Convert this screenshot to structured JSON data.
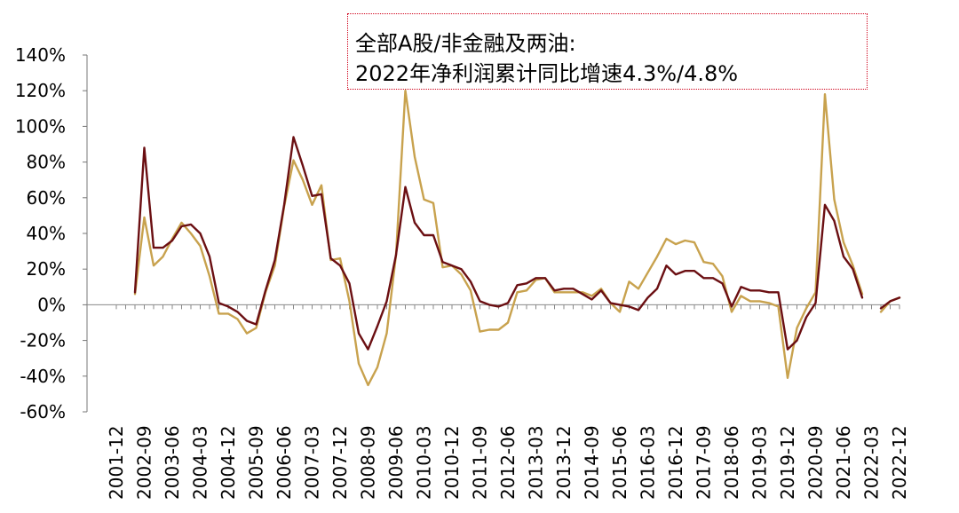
{
  "chart_data": {
    "type": "line",
    "annotation": [
      "全部A股/非金融及两油:",
      "2022年净利润累计同比增速4.3%/4.8%"
    ],
    "y_ticks": [
      -60,
      -40,
      -20,
      0,
      20,
      40,
      60,
      80,
      100,
      120,
      140
    ],
    "y_tick_labels": [
      "-60%",
      "-40%",
      "-20%",
      "0%",
      "20%",
      "40%",
      "60%",
      "80%",
      "100%",
      "120%",
      "140%"
    ],
    "ylim": [
      -60,
      140
    ],
    "x_tick_labels": [
      "2001-12",
      "2002-09",
      "2003-06",
      "2004-03",
      "2004-12",
      "2005-09",
      "2006-06",
      "2007-03",
      "2007-12",
      "2008-09",
      "2009-06",
      "2010-03",
      "2010-12",
      "2011-09",
      "2012-06",
      "2013-03",
      "2013-12",
      "2014-09",
      "2015-06",
      "2016-03",
      "2016-12",
      "2017-09",
      "2018-06",
      "2019-03",
      "2019-12",
      "2020-09",
      "2021-06",
      "2022-03",
      "2022-12"
    ],
    "x_range": [
      "2001-12",
      "2022-12"
    ],
    "grid": false,
    "legend": "none",
    "series": [
      {
        "color": "#6b0f12",
        "points": [
          [
            "2002-06",
            7
          ],
          [
            "2002-09",
            88
          ],
          [
            "2002-12",
            32
          ],
          [
            "2003-03",
            32
          ],
          [
            "2003-06",
            36
          ],
          [
            "2003-09",
            44
          ],
          [
            "2003-12",
            45
          ],
          [
            "2004-03",
            40
          ],
          [
            "2004-06",
            27
          ],
          [
            "2004-09",
            1
          ],
          [
            "2004-12",
            -1
          ],
          [
            "2005-03",
            -4
          ],
          [
            "2005-06",
            -9
          ],
          [
            "2005-09",
            -11
          ],
          [
            "2005-12",
            8
          ],
          [
            "2006-03",
            25
          ],
          [
            "2006-06",
            56
          ],
          [
            "2006-09",
            94
          ],
          [
            "2006-12",
            78
          ],
          [
            "2007-03",
            61
          ],
          [
            "2007-06",
            62
          ],
          [
            "2007-09",
            26
          ],
          [
            "2007-12",
            22
          ],
          [
            "2008-03",
            12
          ],
          [
            "2008-06",
            -16
          ],
          [
            "2008-09",
            -25
          ],
          [
            "2008-12",
            -12
          ],
          [
            "2009-03",
            2
          ],
          [
            "2009-06",
            28
          ],
          [
            "2009-09",
            66
          ],
          [
            "2009-12",
            46
          ],
          [
            "2010-03",
            39
          ],
          [
            "2010-06",
            39
          ],
          [
            "2010-09",
            24
          ],
          [
            "2010-12",
            22
          ],
          [
            "2011-03",
            20
          ],
          [
            "2011-06",
            13
          ],
          [
            "2011-09",
            2
          ],
          [
            "2011-12",
            0
          ],
          [
            "2012-03",
            -1
          ],
          [
            "2012-06",
            1
          ],
          [
            "2012-09",
            11
          ],
          [
            "2012-12",
            12
          ],
          [
            "2013-03",
            15
          ],
          [
            "2013-06",
            15
          ],
          [
            "2013-09",
            8
          ],
          [
            "2013-12",
            9
          ],
          [
            "2014-03",
            9
          ],
          [
            "2014-06",
            6
          ],
          [
            "2014-09",
            3
          ],
          [
            "2014-12",
            8
          ],
          [
            "2015-03",
            1
          ],
          [
            "2015-06",
            0
          ],
          [
            "2015-09",
            -1
          ],
          [
            "2015-12",
            -3
          ],
          [
            "2016-03",
            4
          ],
          [
            "2016-06",
            9
          ],
          [
            "2016-09",
            22
          ],
          [
            "2016-12",
            17
          ],
          [
            "2017-03",
            19
          ],
          [
            "2017-06",
            19
          ],
          [
            "2017-09",
            15
          ],
          [
            "2017-12",
            15
          ],
          [
            "2018-03",
            12
          ],
          [
            "2018-06",
            -1
          ],
          [
            "2018-09",
            10
          ],
          [
            "2018-12",
            8
          ],
          [
            "2019-03",
            8
          ],
          [
            "2019-06",
            7
          ],
          [
            "2019-09",
            7
          ],
          [
            "2019-12",
            -25
          ],
          [
            "2020-03",
            -20
          ],
          [
            "2020-06",
            -7
          ],
          [
            "2020-09",
            1
          ],
          [
            "2020-12",
            56
          ],
          [
            "2021-03",
            47
          ],
          [
            "2021-06",
            27
          ],
          [
            "2021-09",
            20
          ],
          [
            "2021-12",
            4
          ],
          [
            "2022-06",
            -2
          ],
          [
            "2022-09",
            2
          ],
          [
            "2022-12",
            4
          ]
        ]
      },
      {
        "color": "#c8a24e",
        "points": [
          [
            "2002-06",
            6
          ],
          [
            "2002-09",
            49
          ],
          [
            "2002-12",
            22
          ],
          [
            "2003-03",
            27
          ],
          [
            "2003-06",
            37
          ],
          [
            "2003-09",
            46
          ],
          [
            "2003-12",
            40
          ],
          [
            "2004-03",
            33
          ],
          [
            "2004-06",
            16
          ],
          [
            "2004-09",
            -5
          ],
          [
            "2004-12",
            -5
          ],
          [
            "2005-03",
            -8
          ],
          [
            "2005-06",
            -16
          ],
          [
            "2005-09",
            -13
          ],
          [
            "2005-12",
            7
          ],
          [
            "2006-03",
            22
          ],
          [
            "2006-06",
            55
          ],
          [
            "2006-09",
            81
          ],
          [
            "2006-12",
            70
          ],
          [
            "2007-03",
            56
          ],
          [
            "2007-06",
            67
          ],
          [
            "2007-09",
            25
          ],
          [
            "2007-12",
            26
          ],
          [
            "2008-03",
            2
          ],
          [
            "2008-06",
            -33
          ],
          [
            "2008-09",
            -45
          ],
          [
            "2008-12",
            -35
          ],
          [
            "2009-03",
            -16
          ],
          [
            "2009-06",
            28
          ],
          [
            "2009-09",
            120
          ],
          [
            "2009-12",
            83
          ],
          [
            "2010-03",
            59
          ],
          [
            "2010-06",
            57
          ],
          [
            "2010-09",
            21
          ],
          [
            "2010-12",
            22
          ],
          [
            "2011-03",
            17
          ],
          [
            "2011-06",
            8
          ],
          [
            "2011-09",
            -15
          ],
          [
            "2011-12",
            -14
          ],
          [
            "2012-03",
            -14
          ],
          [
            "2012-06",
            -10
          ],
          [
            "2012-09",
            7
          ],
          [
            "2012-12",
            8
          ],
          [
            "2013-03",
            14
          ],
          [
            "2013-06",
            15
          ],
          [
            "2013-09",
            7
          ],
          [
            "2013-12",
            7
          ],
          [
            "2014-03",
            7
          ],
          [
            "2014-06",
            7
          ],
          [
            "2014-09",
            5
          ],
          [
            "2014-12",
            9
          ],
          [
            "2015-03",
            1
          ],
          [
            "2015-06",
            -4
          ],
          [
            "2015-09",
            13
          ],
          [
            "2015-12",
            9
          ],
          [
            "2016-03",
            18
          ],
          [
            "2016-06",
            27
          ],
          [
            "2016-09",
            37
          ],
          [
            "2016-12",
            34
          ],
          [
            "2017-03",
            36
          ],
          [
            "2017-06",
            35
          ],
          [
            "2017-09",
            24
          ],
          [
            "2017-12",
            23
          ],
          [
            "2018-03",
            16
          ],
          [
            "2018-06",
            -4
          ],
          [
            "2018-09",
            5
          ],
          [
            "2018-12",
            2
          ],
          [
            "2019-03",
            2
          ],
          [
            "2019-06",
            1
          ],
          [
            "2019-09",
            -1
          ],
          [
            "2019-12",
            -41
          ],
          [
            "2020-03",
            -13
          ],
          [
            "2020-06",
            -2
          ],
          [
            "2020-09",
            7
          ],
          [
            "2020-12",
            118
          ],
          [
            "2021-03",
            59
          ],
          [
            "2021-06",
            35
          ],
          [
            "2021-09",
            22
          ],
          [
            "2021-12",
            6
          ],
          [
            "2022-06",
            -4
          ],
          [
            "2022-09",
            2
          ],
          [
            "2022-12",
            4
          ]
        ]
      }
    ]
  }
}
